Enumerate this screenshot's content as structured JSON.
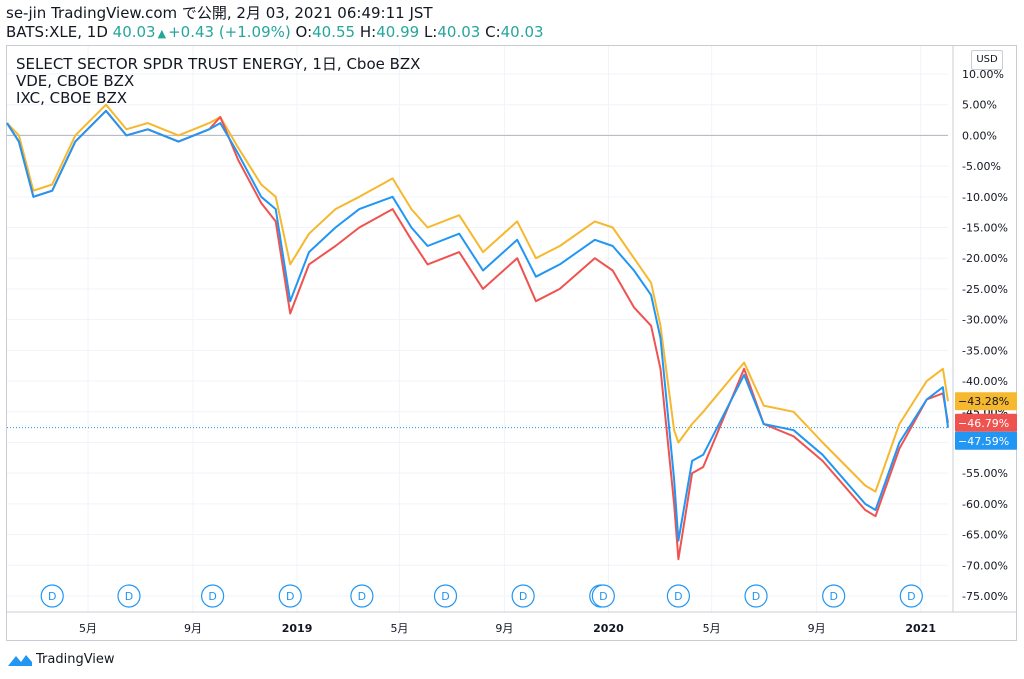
{
  "header": {
    "title": "se-jin TradingView.com で公開, 2月 03, 2021 06:49:11 JST",
    "symbol": "BATS:XLE, 1D",
    "last": "40.03",
    "change": "+0.43 (+1.09%)",
    "o_label": "O:",
    "o_value": "40.55",
    "h_label": "H:",
    "h_value": "40.99",
    "l_label": "L:",
    "l_value": "40.03",
    "c_label": "C:",
    "c_value": "40.03"
  },
  "legend": {
    "line1": "SELECT SECTOR SPDR TRUST ENERGY, 1日, Cboe BZX",
    "line2": "VDE, CBOE BZX",
    "line3": "IXC, CBOE BZX"
  },
  "currency": "USD",
  "footer": {
    "brand": "TradingView"
  },
  "chart_data": {
    "type": "line",
    "y_unit": "%",
    "ylim": [
      -78,
      12
    ],
    "y_ticks": [
      "10.00%",
      "5.00%",
      "0.00%",
      "-5.00%",
      "-10.00%",
      "-15.00%",
      "-20.00%",
      "-25.00%",
      "-30.00%",
      "-35.00%",
      "-40.00%",
      "-45.00%",
      "-50.00%",
      "-55.00%",
      "-60.00%",
      "-65.00%",
      "-70.00%",
      "-75.00%"
    ],
    "y_tick_values": [
      10,
      5,
      0,
      -5,
      -10,
      -15,
      -20,
      -25,
      -30,
      -35,
      -40,
      -45,
      -50,
      -55,
      -60,
      -65,
      -70,
      -75
    ],
    "x_ticks": [
      "5月",
      "9月",
      "2019",
      "5月",
      "9月",
      "2020",
      "5月",
      "9月",
      "2021"
    ],
    "x_tick_dates": [
      "2018-05-01",
      "2018-09-01",
      "2019-01-01",
      "2019-05-01",
      "2019-09-01",
      "2020-01-01",
      "2020-05-01",
      "2020-09-01",
      "2021-01-01"
    ],
    "x_range": [
      "2018-01-26",
      "2021-02-02"
    ],
    "dividend_markers": [
      "2018-03-20",
      "2018-06-18",
      "2018-09-24",
      "2018-12-24",
      "2019-03-18",
      "2019-06-24",
      "2019-09-23",
      "2019-12-23",
      "2019-12-26",
      "2020-03-23",
      "2020-06-22",
      "2020-09-21",
      "2020-12-21"
    ],
    "dividend_label": "D",
    "last_labels": [
      {
        "series": "XLE",
        "text": "-43.28%",
        "value": -43.28,
        "color": "#f5b82e"
      },
      {
        "series": "VDE",
        "text": "-46.79%",
        "value": -46.79,
        "color": "#ef5350"
      },
      {
        "series": "IXC",
        "text": "-47.59%",
        "value": -47.59,
        "color": "#2196f3"
      }
    ],
    "hidden_label": "-45.00%",
    "series": [
      {
        "color": "#f5b82e",
        "x": [
          "2018-01-26",
          "2018-02-09",
          "2018-02-26",
          "2018-03-20",
          "2018-04-16",
          "2018-05-22",
          "2018-06-15",
          "2018-07-10",
          "2018-08-15",
          "2018-09-20",
          "2018-10-03",
          "2018-10-24",
          "2018-11-20",
          "2018-12-07",
          "2018-12-24",
          "2019-01-15",
          "2019-02-15",
          "2019-03-15",
          "2019-04-23",
          "2019-05-15",
          "2019-06-03",
          "2019-07-10",
          "2019-08-07",
          "2019-09-16",
          "2019-10-08",
          "2019-11-05",
          "2019-12-16",
          "2020-01-06",
          "2020-01-31",
          "2020-02-20",
          "2020-03-02",
          "2020-03-18",
          "2020-03-23",
          "2020-04-08",
          "2020-04-21",
          "2020-06-08",
          "2020-07-01",
          "2020-08-05",
          "2020-09-08",
          "2020-10-28",
          "2020-11-09",
          "2020-12-07",
          "2021-01-08",
          "2021-01-27",
          "2021-02-02"
        ],
        "values": [
          2,
          0,
          -9,
          -8,
          0,
          5,
          1,
          2,
          0,
          2,
          3,
          -2,
          -8,
          -10,
          -21,
          -16,
          -12,
          -10,
          -7,
          -12,
          -15,
          -13,
          -19,
          -14,
          -20,
          -18,
          -14,
          -15,
          -20,
          -24,
          -31,
          -48,
          -50,
          -47,
          -45,
          -37,
          -44,
          -45,
          -50,
          -57,
          -58,
          -47,
          -40,
          -38,
          -43.28
        ]
      },
      {
        "color": "#ef5350",
        "x": [
          "2018-01-26",
          "2018-02-09",
          "2018-02-26",
          "2018-03-20",
          "2018-04-16",
          "2018-05-22",
          "2018-06-15",
          "2018-07-10",
          "2018-08-15",
          "2018-09-20",
          "2018-10-03",
          "2018-10-24",
          "2018-11-20",
          "2018-12-07",
          "2018-12-24",
          "2019-01-15",
          "2019-02-15",
          "2019-03-15",
          "2019-04-23",
          "2019-05-15",
          "2019-06-03",
          "2019-07-10",
          "2019-08-07",
          "2019-09-16",
          "2019-10-08",
          "2019-11-05",
          "2019-12-16",
          "2020-01-06",
          "2020-01-31",
          "2020-02-20",
          "2020-03-02",
          "2020-03-18",
          "2020-03-23",
          "2020-04-08",
          "2020-04-21",
          "2020-06-08",
          "2020-07-01",
          "2020-08-05",
          "2020-09-08",
          "2020-10-28",
          "2020-11-09",
          "2020-12-07",
          "2021-01-08",
          "2021-01-27",
          "2021-02-02"
        ],
        "values": [
          2,
          -1,
          -10,
          -9,
          -1,
          4,
          0,
          1,
          -1,
          1,
          3,
          -4,
          -11,
          -14,
          -29,
          -21,
          -18,
          -15,
          -12,
          -17,
          -21,
          -19,
          -25,
          -20,
          -27,
          -25,
          -20,
          -22,
          -28,
          -31,
          -38,
          -60,
          -69,
          -55,
          -54,
          -38,
          -47,
          -49,
          -53,
          -61,
          -62,
          -51,
          -43,
          -42,
          -46.79
        ]
      },
      {
        "color": "#2196f3",
        "x": [
          "2018-01-26",
          "2018-02-09",
          "2018-02-26",
          "2018-03-20",
          "2018-04-16",
          "2018-05-22",
          "2018-06-15",
          "2018-07-10",
          "2018-08-15",
          "2018-09-20",
          "2018-10-03",
          "2018-10-24",
          "2018-11-20",
          "2018-12-07",
          "2018-12-24",
          "2019-01-15",
          "2019-02-15",
          "2019-03-15",
          "2019-04-23",
          "2019-05-15",
          "2019-06-03",
          "2019-07-10",
          "2019-08-07",
          "2019-09-16",
          "2019-10-08",
          "2019-11-05",
          "2019-12-16",
          "2020-01-06",
          "2020-01-31",
          "2020-02-20",
          "2020-03-02",
          "2020-03-18",
          "2020-03-23",
          "2020-04-08",
          "2020-04-21",
          "2020-06-08",
          "2020-07-01",
          "2020-08-05",
          "2020-09-08",
          "2020-10-28",
          "2020-11-09",
          "2020-12-07",
          "2021-01-08",
          "2021-01-27",
          "2021-02-02"
        ],
        "values": [
          2,
          -1,
          -10,
          -9,
          -1,
          4,
          0,
          1,
          -1,
          1,
          2,
          -3,
          -10,
          -12,
          -27,
          -19,
          -15,
          -12,
          -10,
          -15,
          -18,
          -16,
          -22,
          -17,
          -23,
          -21,
          -17,
          -18,
          -22,
          -26,
          -33,
          -56,
          -66,
          -53,
          -52,
          -39,
          -47,
          -48,
          -52,
          -60,
          -61,
          -50,
          -43,
          -41,
          -47.59
        ]
      }
    ]
  }
}
